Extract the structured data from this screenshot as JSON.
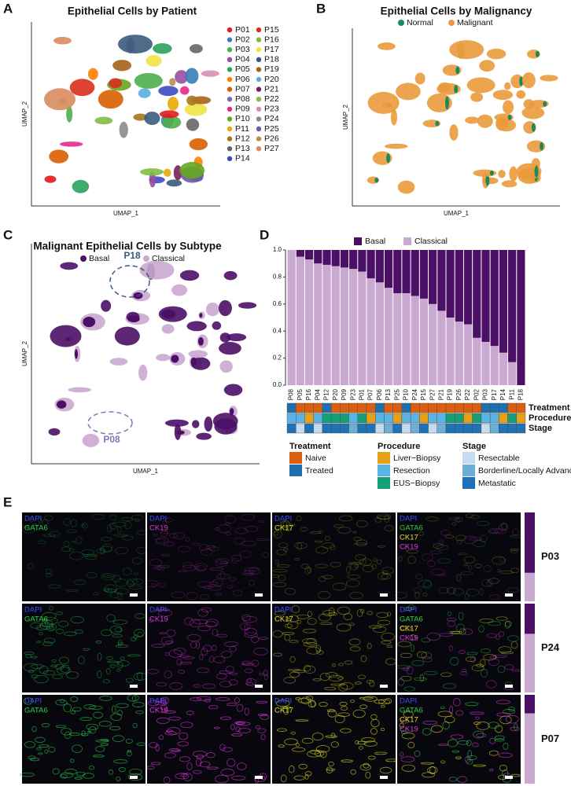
{
  "panel_labels": [
    "A",
    "B",
    "C",
    "D",
    "E"
  ],
  "chart_data": [
    {
      "type": "umap",
      "title": "Epithelial Cells by Patient",
      "xlabel": "UMAP_1",
      "ylabel": "UMAP_2",
      "series": [
        {
          "name": "P01",
          "color": "#e41a1c"
        },
        {
          "name": "P02",
          "color": "#3a7cb8"
        },
        {
          "name": "P03",
          "color": "#4daf4a"
        },
        {
          "name": "P04",
          "color": "#984ea3"
        },
        {
          "name": "P05",
          "color": "#2ca25f"
        },
        {
          "name": "P06",
          "color": "#ff7f00"
        },
        {
          "name": "P07",
          "color": "#d95f02"
        },
        {
          "name": "P08",
          "color": "#7570b3"
        },
        {
          "name": "P09",
          "color": "#e7298a"
        },
        {
          "name": "P10",
          "color": "#66a61e"
        },
        {
          "name": "P11",
          "color": "#e6ab02"
        },
        {
          "name": "P12",
          "color": "#a6761d"
        },
        {
          "name": "P13",
          "color": "#666666"
        },
        {
          "name": "P14",
          "color": "#3b4cc0"
        },
        {
          "name": "P15",
          "color": "#d7301f"
        },
        {
          "name": "P16",
          "color": "#7fbc41"
        },
        {
          "name": "P17",
          "color": "#f0e442"
        },
        {
          "name": "P18",
          "color": "#3b5b7d"
        },
        {
          "name": "P19",
          "color": "#a6611a"
        },
        {
          "name": "P20",
          "color": "#5aaee0"
        },
        {
          "name": "P21",
          "color": "#7b1f5c"
        },
        {
          "name": "P22",
          "color": "#8fb24a"
        },
        {
          "name": "P23",
          "color": "#d88fb0"
        },
        {
          "name": "P24",
          "color": "#8b8b8b"
        },
        {
          "name": "P25",
          "color": "#6b5ba8"
        },
        {
          "name": "P26",
          "color": "#b88d4a"
        },
        {
          "name": "P27",
          "color": "#d98c5f"
        }
      ]
    },
    {
      "type": "umap",
      "title": "Epithelial Cells by Malignancy",
      "xlabel": "UMAP_1",
      "ylabel": "UMAP_2",
      "series": [
        {
          "name": "Normal",
          "color": "#1b8a5a"
        },
        {
          "name": "Malignant",
          "color": "#ea9a3c"
        }
      ]
    },
    {
      "type": "umap",
      "title": "Malignant Epithelial Cells by Subtype",
      "xlabel": "UMAP_1",
      "ylabel": "UMAP_2",
      "series": [
        {
          "name": "Basal",
          "color": "#4b1066"
        },
        {
          "name": "Classical",
          "color": "#c9a9cf"
        }
      ],
      "annotations": [
        "P18",
        "P08"
      ]
    },
    {
      "type": "stacked_bar",
      "categories": [
        "P08",
        "P05",
        "P16",
        "P04",
        "P12",
        "P20",
        "P09",
        "P23",
        "P01",
        "P07",
        "P06",
        "P13",
        "P25",
        "P10",
        "P24",
        "P15",
        "P27",
        "P21",
        "P19",
        "P26",
        "P22",
        "P02",
        "P03",
        "P17",
        "P14",
        "P11",
        "P18"
      ],
      "series": [
        {
          "name": "Basal",
          "color": "#4b1066",
          "values": [
            0,
            0.05,
            0.07,
            0.1,
            0.11,
            0.12,
            0.13,
            0.14,
            0.16,
            0.21,
            0.24,
            0.28,
            0.32,
            0.32,
            0.34,
            0.36,
            0.4,
            0.45,
            0.5,
            0.53,
            0.55,
            0.65,
            0.68,
            0.71,
            0.76,
            0.83,
            1
          ]
        },
        {
          "name": "Classical",
          "color": "#c9a9cf",
          "values": [
            1,
            0.95,
            0.93,
            0.9,
            0.89,
            0.88,
            0.87,
            0.86,
            0.84,
            0.79,
            0.76,
            0.72,
            0.68,
            0.68,
            0.66,
            0.64,
            0.6,
            0.55,
            0.5,
            0.47,
            0.45,
            0.35,
            0.32,
            0.29,
            0.24,
            0.17,
            0
          ]
        }
      ],
      "ylim": [
        0,
        1
      ],
      "yticks": [
        {
          "value": 0,
          "label": "0.0"
        },
        0.2,
        0.4,
        0.6,
        0.8,
        {
          "value": 1,
          "label": "1.0"
        }
      ],
      "tracks": [
        {
          "name": "Treatment",
          "items": [
            {
              "name": "Naive",
              "color": "#d95f0e"
            },
            {
              "name": "Treated",
              "color": "#1f6fae"
            }
          ],
          "values": [
            "Treated",
            "Naive",
            "Naive",
            "Naive",
            "Treated",
            "Naive",
            "Naive",
            "Naive",
            "Naive",
            "Naive",
            "Treated",
            "Naive",
            "Naive",
            "Treated",
            "Naive",
            "Naive",
            "Naive",
            "Naive",
            "Naive",
            "Naive",
            "Naive",
            "Naive",
            "Treated",
            "Treated",
            "Treated",
            "Naive",
            "Naive"
          ]
        },
        {
          "name": "Procedure",
          "items": [
            {
              "name": "Liver−Biopsy",
              "color": "#e6a118"
            },
            {
              "name": "Resection",
              "color": "#5ab4e5"
            },
            {
              "name": "EUS−Biopsy",
              "color": "#17a077"
            }
          ],
          "values": [
            "Resection",
            "Resection",
            "Liver−Biopsy",
            "Resection",
            "EUS−Biopsy",
            "EUS−Biopsy",
            "EUS−Biopsy",
            "Resection",
            "EUS−Biopsy",
            "Liver−Biopsy",
            "Resection",
            "Resection",
            "Liver−Biopsy",
            "Resection",
            "Resection",
            "Liver−Biopsy",
            "Resection",
            "Resection",
            "EUS−Biopsy",
            "EUS−Biopsy",
            "Liver−Biopsy",
            "EUS−Biopsy",
            "Resection",
            "Resection",
            "Liver−Biopsy",
            "EUS−Biopsy",
            "Liver−Biopsy"
          ]
        },
        {
          "name": "Stage",
          "items": [
            {
              "name": "Resectable",
              "color": "#c6dbef"
            },
            {
              "name": "Borderline/Locally Advanced",
              "color": "#6baed6"
            },
            {
              "name": "Metastatic",
              "color": "#2171b5"
            }
          ],
          "values": [
            "Metastatic",
            "Resectable",
            "Metastatic",
            "Resectable",
            "Metastatic",
            "Metastatic",
            "Metastatic",
            "Borderline/Locally Advanced",
            "Metastatic",
            "Metastatic",
            "Resectable",
            "Borderline/Locally Advanced",
            "Metastatic",
            "Resectable",
            "Borderline/Locally Advanced",
            "Metastatic",
            "Resectable",
            "Borderline/Locally Advanced",
            "Metastatic",
            "Metastatic",
            "Metastatic",
            "Metastatic",
            "Resectable",
            "Borderline/Locally Advanced",
            "Metastatic",
            "Metastatic",
            "Metastatic"
          ]
        }
      ]
    },
    {
      "type": "image_grid",
      "channels": [
        {
          "name": "DAPI",
          "color": "#3a4cff"
        },
        {
          "name": "GATA6",
          "color": "#2fd04a"
        },
        {
          "name": "CK19",
          "color": "#e03ae0"
        },
        {
          "name": "CK17",
          "color": "#e0e02a"
        }
      ],
      "columns": [
        [
          "DAPI",
          "GATA6"
        ],
        [
          "DAPI",
          "CK19"
        ],
        [
          "DAPI",
          "CK17"
        ],
        [
          "DAPI",
          "GATA6",
          "CK17",
          "CK19"
        ]
      ],
      "rows": [
        {
          "patient": "P03",
          "basal": 0.68
        },
        {
          "patient": "P24",
          "basal": 0.34
        },
        {
          "patient": "P07",
          "basal": 0.21
        }
      ],
      "bar_colors": {
        "basal": "#4b1066",
        "classical": "#c9a9cf"
      }
    }
  ]
}
